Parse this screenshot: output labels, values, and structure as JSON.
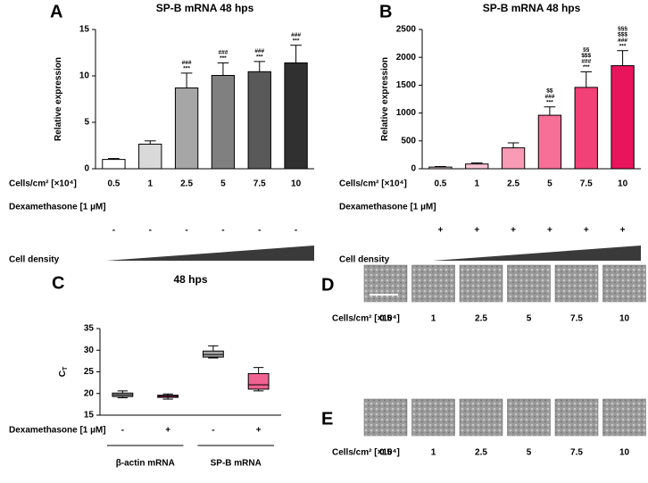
{
  "chart_data": [
    {
      "type": "bar",
      "panel": "A",
      "title": "SP-B mRNA 48 hps",
      "ylabel": "Relative expression",
      "ylim": [
        0,
        15
      ],
      "yticks": [
        0,
        5,
        10,
        15
      ],
      "categories": [
        "0.5",
        "1",
        "2.5",
        "5",
        "7.5",
        "10"
      ],
      "values": [
        1.0,
        2.65,
        8.7,
        10.05,
        10.45,
        11.4
      ],
      "errors": [
        0.1,
        0.35,
        1.6,
        1.35,
        1.1,
        1.9
      ],
      "colors": [
        "#ffffff",
        "#d9d9d9",
        "#a6a6a6",
        "#808080",
        "#595959",
        "#303030"
      ],
      "annotations": [
        {
          "index": 2,
          "lines": [
            "###",
            "***"
          ]
        },
        {
          "index": 3,
          "lines": [
            "###",
            "***"
          ]
        },
        {
          "index": 4,
          "lines": [
            "###",
            "***"
          ]
        },
        {
          "index": 5,
          "lines": [
            "###",
            "***"
          ]
        }
      ],
      "x_row_label": "Cells/cm² [×10⁴]",
      "dexamethasone_label": "Dexamethasone [1 µM]",
      "dexamethasone": [
        "-",
        "-",
        "-",
        "-",
        "-",
        "-"
      ],
      "gradient_label": "Cell density"
    },
    {
      "type": "bar",
      "panel": "B",
      "title": "SP-B mRNA 48 hps",
      "ylabel": "Relative expression",
      "ylim": [
        0,
        2500
      ],
      "yticks": [
        0,
        500,
        1000,
        1500,
        2000,
        2500
      ],
      "categories": [
        "0.5",
        "1",
        "2.5",
        "5",
        "7.5",
        "10"
      ],
      "values": [
        30,
        85,
        375,
        960,
        1460,
        1850
      ],
      "errors": [
        10,
        20,
        90,
        150,
        280,
        270
      ],
      "colors": [
        "#fde3ea",
        "#fbc3d3",
        "#f99bb5",
        "#f76e96",
        "#f24176",
        "#e8145c"
      ],
      "annotations": [
        {
          "index": 3,
          "lines": [
            "$$",
            "###",
            "***"
          ]
        },
        {
          "index": 4,
          "lines": [
            "§§",
            "$$$",
            "###",
            "***"
          ]
        },
        {
          "index": 5,
          "lines": [
            "§§§",
            "$$$",
            "###",
            "***"
          ]
        }
      ],
      "x_row_label": "Cells/cm² [×10⁴]",
      "dexamethasone_label": "Dexamethasone [1 µM]",
      "dexamethasone": [
        "+",
        "+",
        "+",
        "+",
        "+",
        "+"
      ],
      "gradient_label": "Cell density"
    },
    {
      "type": "box",
      "panel": "C",
      "title": "48 hps",
      "ylabel": "C",
      "ylabel_subscript": "T",
      "ylim": [
        15,
        35
      ],
      "yticks": [
        15,
        20,
        25,
        30,
        35
      ],
      "boxes": [
        {
          "min": 19.0,
          "q1": 19.3,
          "median": 19.7,
          "q3": 20.1,
          "max": 20.6,
          "color": "#a6a6a6"
        },
        {
          "min": 18.7,
          "q1": 19.1,
          "median": 19.4,
          "q3": 19.6,
          "max": 19.9,
          "color": "#c2185b"
        },
        {
          "min": 28.2,
          "q1": 28.4,
          "median": 29.0,
          "q3": 29.8,
          "max": 31.0,
          "color": "#a6a6a6"
        },
        {
          "min": 20.6,
          "q1": 21.0,
          "median": 22.0,
          "q3": 24.6,
          "max": 26.0,
          "color": "#f06292"
        }
      ],
      "dexamethasone_label": "Dexamethasone [1 µM]",
      "dexamethasone": [
        "-",
        "+",
        "-",
        "+"
      ],
      "groups": [
        "β-actin mRNA",
        "SP-B mRNA"
      ]
    }
  ],
  "image_panels": [
    {
      "panel": "D",
      "row_label": "Cells/cm² [×10⁴]",
      "categories": [
        "0.5",
        "1",
        "2.5",
        "5",
        "7.5",
        "10"
      ]
    },
    {
      "panel": "E",
      "row_label": "Cells/cm² [×10⁴]",
      "categories": [
        "0.5",
        "1",
        "2.5",
        "5",
        "7.5",
        "10"
      ]
    }
  ]
}
